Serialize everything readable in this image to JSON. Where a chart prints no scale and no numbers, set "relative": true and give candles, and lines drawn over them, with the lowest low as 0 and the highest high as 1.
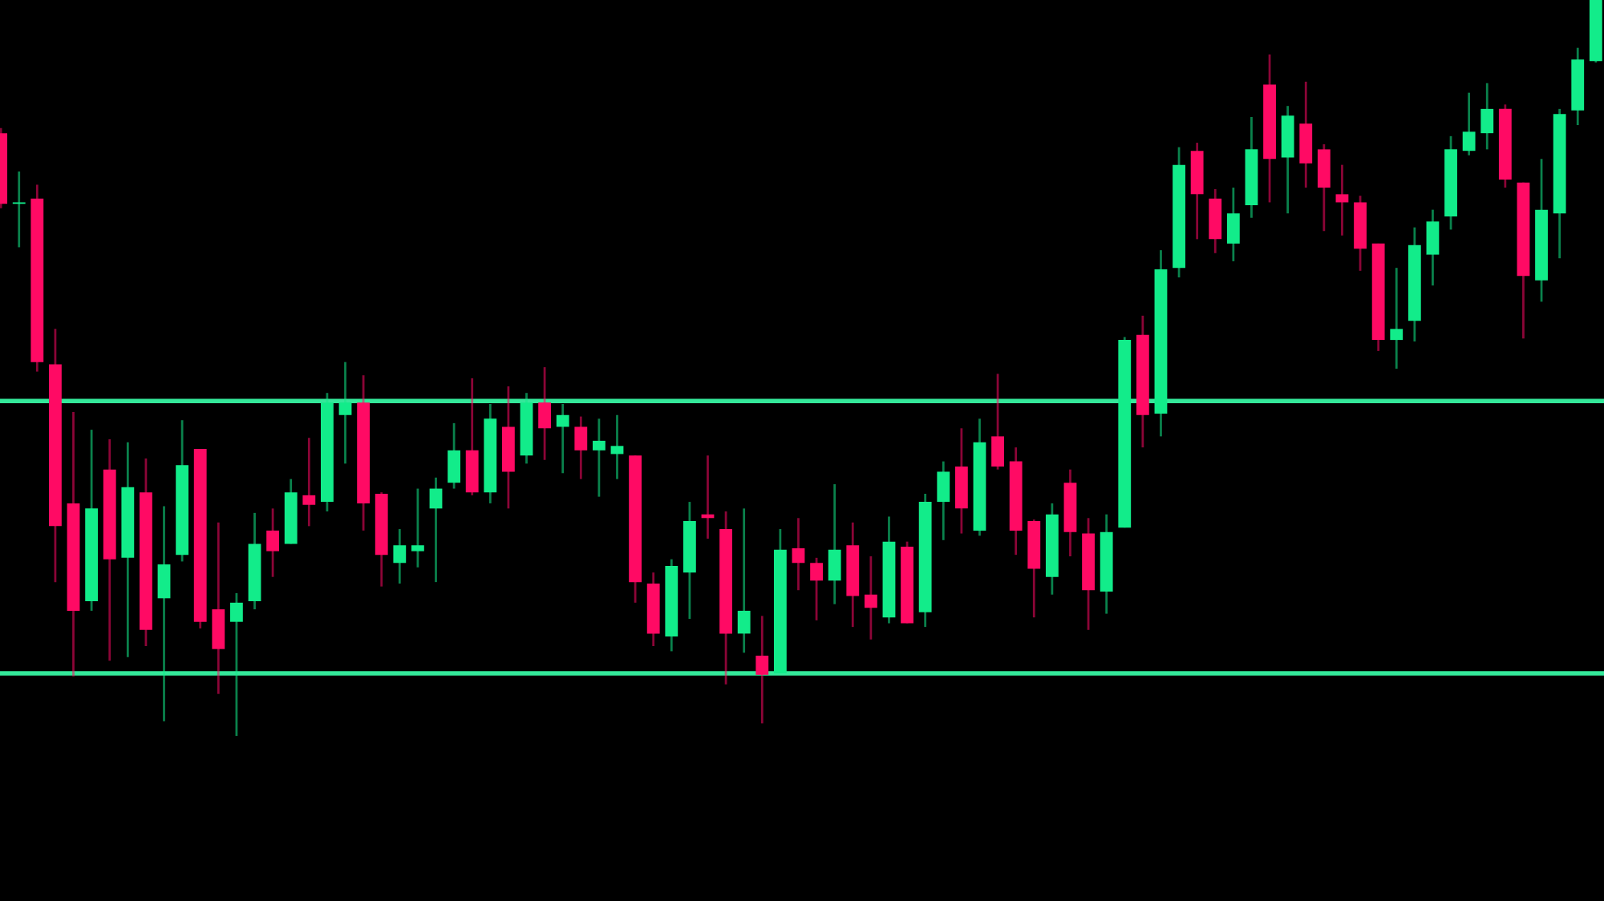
{
  "chart_data": {
    "type": "candlestick",
    "relative": true,
    "categories": [
      null,
      null,
      null,
      null,
      null,
      null,
      null,
      null,
      null,
      null,
      null,
      null,
      null,
      null,
      null,
      null,
      null,
      null,
      null,
      null,
      null,
      null,
      null,
      null,
      null,
      null,
      null,
      null,
      null,
      null,
      null,
      null,
      null,
      null,
      null,
      null,
      null,
      null,
      null,
      null,
      null,
      null,
      null,
      null,
      null,
      null,
      null,
      null,
      null,
      null,
      null,
      null,
      null,
      null,
      null,
      null,
      null,
      null,
      null,
      null,
      null,
      null,
      null,
      null,
      null,
      null,
      null,
      null,
      null,
      null,
      null,
      null,
      null,
      null,
      null,
      null,
      null,
      null,
      null,
      null,
      null,
      null,
      null,
      null,
      null,
      null,
      null,
      null,
      null
    ],
    "ohlc": [
      [
        0.819,
        0.826,
        0.717,
        0.723
      ],
      [
        0.723,
        0.767,
        0.664,
        0.723
      ],
      [
        0.73,
        0.749,
        0.495,
        0.508
      ],
      [
        0.505,
        0.553,
        0.209,
        0.285
      ],
      [
        0.316,
        0.44,
        0.081,
        0.17
      ],
      [
        0.183,
        0.416,
        0.17,
        0.309
      ],
      [
        0.362,
        0.403,
        0.102,
        0.24
      ],
      [
        0.242,
        0.399,
        0.107,
        0.338
      ],
      [
        0.331,
        0.377,
        0.122,
        0.144
      ],
      [
        0.187,
        0.312,
        0.02,
        0.233
      ],
      [
        0.246,
        0.429,
        0.237,
        0.368
      ],
      [
        0.39,
        0.39,
        0.146,
        0.155
      ],
      [
        0.172,
        0.29,
        0.057,
        0.118
      ],
      [
        0.155,
        0.194,
        0.0,
        0.181
      ],
      [
        0.183,
        0.303,
        0.172,
        0.261
      ],
      [
        0.279,
        0.309,
        0.216,
        0.251
      ],
      [
        0.261,
        0.349,
        0.261,
        0.331
      ],
      [
        0.327,
        0.405,
        0.285,
        0.314
      ],
      [
        0.318,
        0.466,
        0.305,
        0.453
      ],
      [
        0.436,
        0.508,
        0.37,
        0.453
      ],
      [
        0.453,
        0.49,
        0.279,
        0.316
      ],
      [
        0.329,
        0.331,
        0.203,
        0.246
      ],
      [
        0.235,
        0.281,
        0.207,
        0.259
      ],
      [
        0.251,
        0.336,
        0.229,
        0.259
      ],
      [
        0.309,
        0.351,
        0.209,
        0.336
      ],
      [
        0.344,
        0.425,
        0.336,
        0.388
      ],
      [
        0.388,
        0.486,
        0.327,
        0.331
      ],
      [
        0.331,
        0.451,
        0.316,
        0.431
      ],
      [
        0.42,
        0.475,
        0.309,
        0.359
      ],
      [
        0.381,
        0.466,
        0.37,
        0.453
      ],
      [
        0.453,
        0.501,
        0.375,
        0.418
      ],
      [
        0.42,
        0.451,
        0.357,
        0.436
      ],
      [
        0.42,
        0.434,
        0.349,
        0.388
      ],
      [
        0.388,
        0.431,
        0.325,
        0.401
      ],
      [
        0.383,
        0.436,
        0.349,
        0.394
      ],
      [
        0.381,
        0.381,
        0.181,
        0.209
      ],
      [
        0.207,
        0.222,
        0.122,
        0.139
      ],
      [
        0.135,
        0.24,
        0.115,
        0.231
      ],
      [
        0.222,
        0.318,
        0.159,
        0.292
      ],
      [
        0.301,
        0.381,
        0.268,
        0.296
      ],
      [
        0.281,
        0.305,
        0.07,
        0.139
      ],
      [
        0.139,
        0.309,
        0.113,
        0.17
      ],
      [
        0.109,
        0.163,
        0.017,
        0.083
      ],
      [
        0.085,
        0.281,
        0.085,
        0.253
      ],
      [
        0.255,
        0.296,
        0.198,
        0.235
      ],
      [
        0.235,
        0.242,
        0.157,
        0.211
      ],
      [
        0.211,
        0.342,
        0.179,
        0.253
      ],
      [
        0.259,
        0.29,
        0.148,
        0.19
      ],
      [
        0.192,
        0.244,
        0.131,
        0.174
      ],
      [
        0.161,
        0.298,
        0.153,
        0.264
      ],
      [
        0.257,
        0.264,
        0.153,
        0.153
      ],
      [
        0.168,
        0.329,
        0.148,
        0.318
      ],
      [
        0.318,
        0.373,
        0.266,
        0.359
      ],
      [
        0.366,
        0.418,
        0.275,
        0.309
      ],
      [
        0.279,
        0.431,
        0.272,
        0.399
      ],
      [
        0.407,
        0.492,
        0.362,
        0.366
      ],
      [
        0.373,
        0.392,
        0.246,
        0.279
      ],
      [
        0.292,
        0.294,
        0.161,
        0.227
      ],
      [
        0.216,
        0.316,
        0.192,
        0.301
      ],
      [
        0.344,
        0.362,
        0.244,
        0.277
      ],
      [
        0.275,
        0.296,
        0.144,
        0.198
      ],
      [
        0.196,
        0.301,
        0.166,
        0.277
      ],
      [
        0.283,
        0.542,
        0.283,
        0.538
      ],
      [
        0.545,
        0.571,
        0.392,
        0.436
      ],
      [
        0.438,
        0.66,
        0.407,
        0.634
      ],
      [
        0.636,
        0.8,
        0.623,
        0.776
      ],
      [
        0.795,
        0.806,
        0.675,
        0.736
      ],
      [
        0.73,
        0.743,
        0.656,
        0.675
      ],
      [
        0.669,
        0.745,
        0.645,
        0.71
      ],
      [
        0.721,
        0.841,
        0.704,
        0.797
      ],
      [
        0.885,
        0.926,
        0.725,
        0.784
      ],
      [
        0.786,
        0.856,
        0.71,
        0.843
      ],
      [
        0.832,
        0.889,
        0.745,
        0.778
      ],
      [
        0.797,
        0.804,
        0.686,
        0.745
      ],
      [
        0.736,
        0.776,
        0.68,
        0.725
      ],
      [
        0.725,
        0.734,
        0.632,
        0.662
      ],
      [
        0.669,
        0.669,
        0.523,
        0.538
      ],
      [
        0.538,
        0.636,
        0.499,
        0.553
      ],
      [
        0.564,
        0.691,
        0.536,
        0.667
      ],
      [
        0.654,
        0.715,
        0.612,
        0.699
      ],
      [
        0.706,
        0.815,
        0.688,
        0.797
      ],
      [
        0.795,
        0.874,
        0.789,
        0.821
      ],
      [
        0.819,
        0.887,
        0.797,
        0.852
      ],
      [
        0.852,
        0.858,
        0.745,
        0.756
      ],
      [
        0.752,
        0.752,
        0.54,
        0.625
      ],
      [
        0.619,
        0.784,
        0.59,
        0.715
      ],
      [
        0.71,
        0.852,
        0.649,
        0.845
      ],
      [
        0.85,
        0.935,
        0.83,
        0.919
      ],
      [
        0.917,
        1.0,
        0.915,
        1.0
      ]
    ],
    "colors": [
      "#ff0a64",
      "#12ec8a",
      "#ff0a64",
      "#ff0a64",
      "#ff0a64",
      "#12ec8a",
      "#ff0a64",
      "#12ec8a",
      "#ff0a64",
      "#12ec8a",
      "#12ec8a",
      "#ff0a64",
      "#ff0a64",
      "#12ec8a",
      "#12ec8a",
      "#ff0a64",
      "#12ec8a",
      "#ff0a64",
      "#12ec8a",
      "#12ec8a",
      "#ff0a64",
      "#ff0a64",
      "#12ec8a",
      "#12ec8a",
      "#12ec8a",
      "#12ec8a",
      "#ff0a64",
      "#12ec8a",
      "#ff0a64",
      "#12ec8a",
      "#ff0a64",
      "#12ec8a",
      "#ff0a64",
      "#12ec8a",
      "#12ec8a",
      "#ff0a64",
      "#ff0a64",
      "#12ec8a",
      "#12ec8a",
      "#ff0a64",
      "#ff0a64",
      "#12ec8a",
      "#ff0a64",
      "#12ec8a",
      "#ff0a64",
      "#ff0a64",
      "#12ec8a",
      "#ff0a64",
      "#ff0a64",
      "#12ec8a",
      "#ff0a64",
      "#12ec8a",
      "#12ec8a",
      "#ff0a64",
      "#12ec8a",
      "#ff0a64",
      "#ff0a64",
      "#ff0a64",
      "#12ec8a",
      "#ff0a64",
      "#ff0a64",
      "#12ec8a",
      "#12ec8a",
      "#ff0a64",
      "#12ec8a",
      "#12ec8a",
      "#ff0a64",
      "#ff0a64",
      "#12ec8a",
      "#12ec8a",
      "#ff0a64",
      "#12ec8a",
      "#ff0a64",
      "#ff0a64",
      "#ff0a64",
      "#ff0a64",
      "#ff0a64",
      "#12ec8a",
      "#12ec8a",
      "#12ec8a",
      "#12ec8a",
      "#12ec8a",
      "#12ec8a",
      "#ff0a64",
      "#ff0a64",
      "#12ec8a",
      "#12ec8a",
      "#12ec8a",
      "#12ec8a"
    ],
    "ref_lines": [
      {
        "axis": "y",
        "value": 0.455,
        "color": "#34e89a"
      },
      {
        "axis": "y",
        "value": 0.085,
        "color": "#34e89a"
      }
    ]
  }
}
